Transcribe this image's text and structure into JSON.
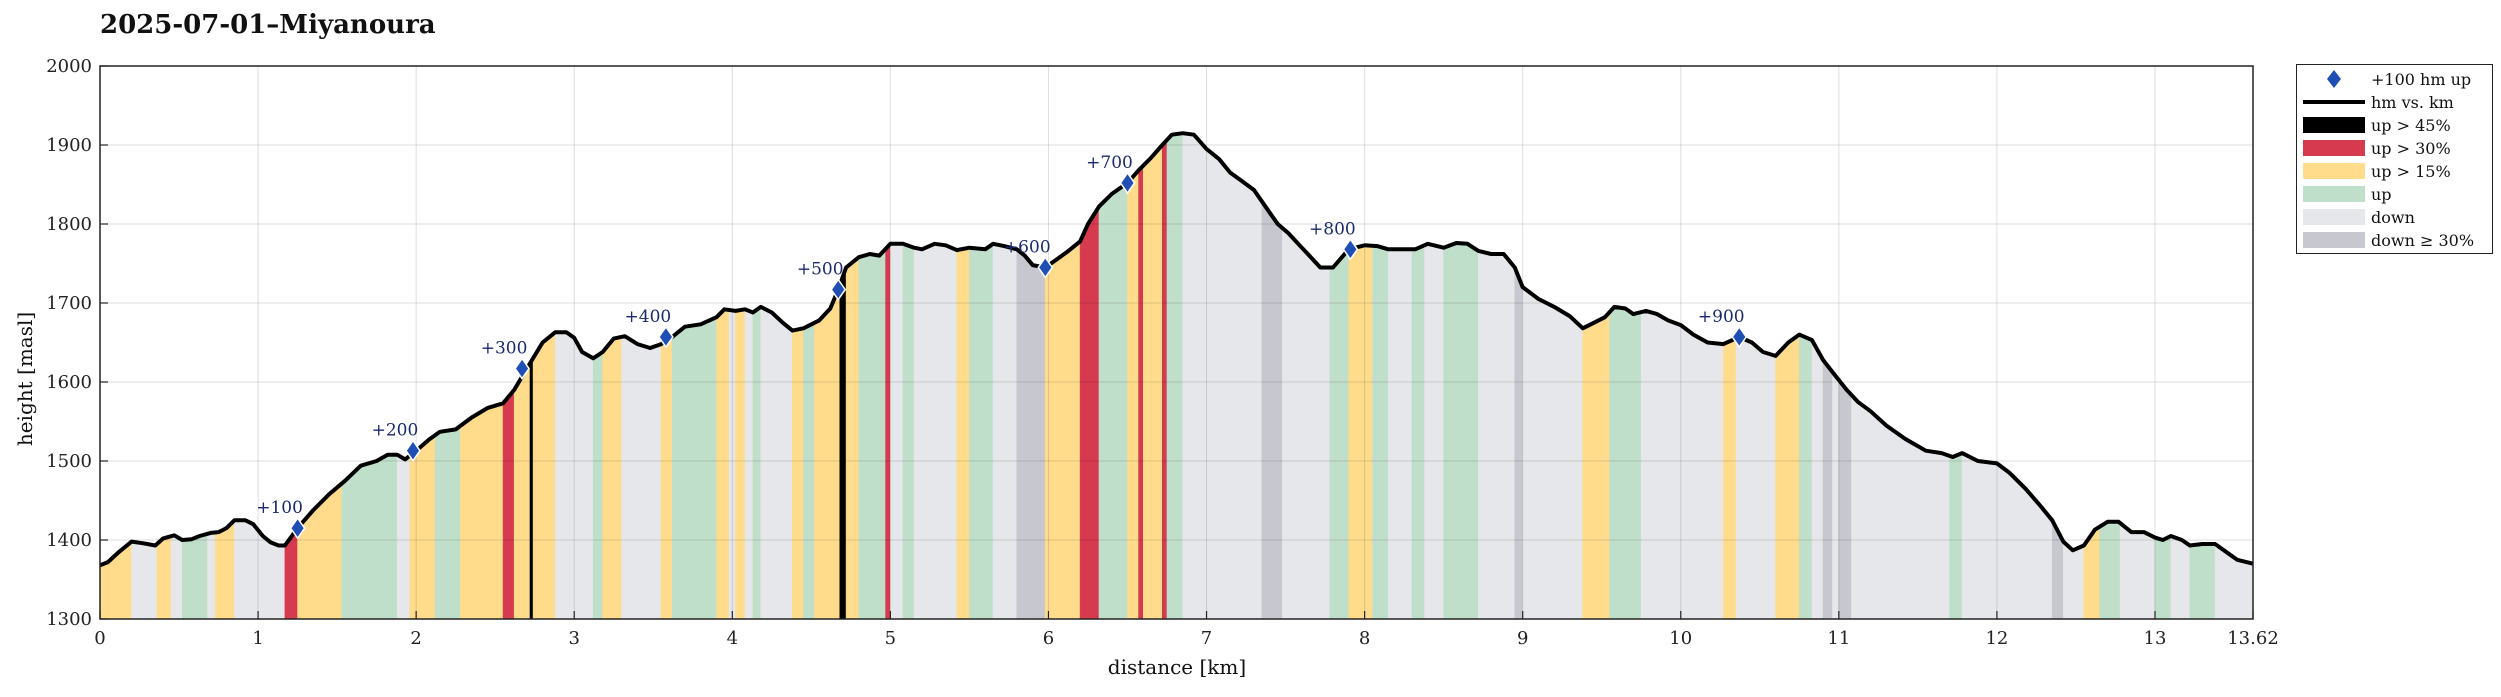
{
  "chart_data": {
    "type": "area",
    "title": "2025-07-01–Miyanoura",
    "xlabel": "distance [km]",
    "ylabel": "height [masl]",
    "xlim": [
      0,
      13.62
    ],
    "ylim": [
      1300,
      2000
    ],
    "xticks": [
      "0",
      "1",
      "2",
      "3",
      "4",
      "5",
      "6",
      "7",
      "8",
      "9",
      "10",
      "11",
      "12",
      "13",
      "13.62"
    ],
    "xtick_values": [
      0,
      1,
      2,
      3,
      4,
      5,
      6,
      7,
      8,
      9,
      10,
      11,
      12,
      13,
      13.62
    ],
    "yticks": [
      "1300",
      "1400",
      "1500",
      "1600",
      "1700",
      "1800",
      "1900",
      "2000"
    ],
    "ytick_values": [
      1300,
      1400,
      1500,
      1600,
      1700,
      1800,
      1900,
      2000
    ],
    "grid": true,
    "legend_position": "outside-top-right",
    "colors": {
      "up45": "#000000",
      "up30": "#d63a4e",
      "up15": "#fedc8c",
      "up": "#c0dfca",
      "down": "#e6e7ea",
      "down30": "#c7c8cf",
      "line": "#000000",
      "marker": "#1f4fb4"
    },
    "legend": [
      {
        "key": "marker",
        "label": "+100 hm up"
      },
      {
        "key": "line",
        "label": "hm vs. km"
      },
      {
        "key": "up45",
        "label": "up > 45%"
      },
      {
        "key": "up30",
        "label": "up > 30%"
      },
      {
        "key": "up15",
        "label": "up > 15%"
      },
      {
        "key": "up",
        "label": "up"
      },
      {
        "key": "down",
        "label": "down"
      },
      {
        "key": "down30",
        "label": "down ≥ 30%"
      }
    ],
    "profile": [
      [
        0,
        1368
      ],
      [
        0.05,
        1372
      ],
      [
        0.12,
        1385
      ],
      [
        0.2,
        1398
      ],
      [
        0.27,
        1396
      ],
      [
        0.35,
        1393
      ],
      [
        0.4,
        1402
      ],
      [
        0.47,
        1406
      ],
      [
        0.52,
        1400
      ],
      [
        0.58,
        1401
      ],
      [
        0.63,
        1405
      ],
      [
        0.7,
        1409
      ],
      [
        0.75,
        1410
      ],
      [
        0.8,
        1415
      ],
      [
        0.85,
        1425
      ],
      [
        0.92,
        1425
      ],
      [
        0.97,
        1420
      ],
      [
        1.03,
        1405
      ],
      [
        1.08,
        1397
      ],
      [
        1.13,
        1393
      ],
      [
        1.17,
        1393
      ],
      [
        1.25,
        1415
      ],
      [
        1.35,
        1438
      ],
      [
        1.45,
        1458
      ],
      [
        1.55,
        1475
      ],
      [
        1.65,
        1494
      ],
      [
        1.75,
        1500
      ],
      [
        1.82,
        1508
      ],
      [
        1.88,
        1508
      ],
      [
        1.93,
        1502
      ],
      [
        2.0,
        1513
      ],
      [
        2.08,
        1527
      ],
      [
        2.15,
        1537
      ],
      [
        2.25,
        1540
      ],
      [
        2.35,
        1555
      ],
      [
        2.45,
        1567
      ],
      [
        2.55,
        1573
      ],
      [
        2.62,
        1590
      ],
      [
        2.7,
        1617
      ],
      [
        2.8,
        1650
      ],
      [
        2.88,
        1663
      ],
      [
        2.95,
        1663
      ],
      [
        3.0,
        1656
      ],
      [
        3.05,
        1638
      ],
      [
        3.12,
        1630
      ],
      [
        3.18,
        1638
      ],
      [
        3.25,
        1655
      ],
      [
        3.32,
        1658
      ],
      [
        3.4,
        1648
      ],
      [
        3.48,
        1643
      ],
      [
        3.55,
        1648
      ],
      [
        3.62,
        1657
      ],
      [
        3.7,
        1670
      ],
      [
        3.8,
        1673
      ],
      [
        3.9,
        1682
      ],
      [
        3.95,
        1692
      ],
      [
        4.02,
        1690
      ],
      [
        4.08,
        1692
      ],
      [
        4.13,
        1688
      ],
      [
        4.18,
        1695
      ],
      [
        4.25,
        1688
      ],
      [
        4.32,
        1675
      ],
      [
        4.38,
        1665
      ],
      [
        4.45,
        1668
      ],
      [
        4.55,
        1678
      ],
      [
        4.62,
        1693
      ],
      [
        4.67,
        1717
      ],
      [
        4.72,
        1745
      ],
      [
        4.8,
        1758
      ],
      [
        4.87,
        1762
      ],
      [
        4.93,
        1760
      ],
      [
        5.0,
        1775
      ],
      [
        5.08,
        1775
      ],
      [
        5.15,
        1770
      ],
      [
        5.2,
        1768
      ],
      [
        5.28,
        1775
      ],
      [
        5.35,
        1773
      ],
      [
        5.42,
        1767
      ],
      [
        5.5,
        1770
      ],
      [
        5.6,
        1768
      ],
      [
        5.65,
        1775
      ],
      [
        5.72,
        1772
      ],
      [
        5.8,
        1768
      ],
      [
        5.85,
        1760
      ],
      [
        5.9,
        1748
      ],
      [
        5.98,
        1745
      ],
      [
        6.05,
        1755
      ],
      [
        6.12,
        1765
      ],
      [
        6.2,
        1778
      ],
      [
        6.25,
        1800
      ],
      [
        6.32,
        1822
      ],
      [
        6.4,
        1838
      ],
      [
        6.5,
        1852
      ],
      [
        6.57,
        1868
      ],
      [
        6.65,
        1884
      ],
      [
        6.72,
        1900
      ],
      [
        6.78,
        1913
      ],
      [
        6.85,
        1915
      ],
      [
        6.92,
        1913
      ],
      [
        7.0,
        1895
      ],
      [
        7.08,
        1882
      ],
      [
        7.15,
        1865
      ],
      [
        7.22,
        1855
      ],
      [
        7.3,
        1843
      ],
      [
        7.38,
        1820
      ],
      [
        7.45,
        1800
      ],
      [
        7.52,
        1788
      ],
      [
        7.58,
        1775
      ],
      [
        7.65,
        1760
      ],
      [
        7.72,
        1745
      ],
      [
        7.8,
        1745
      ],
      [
        7.9,
        1768
      ],
      [
        8.0,
        1773
      ],
      [
        8.08,
        1772
      ],
      [
        8.15,
        1768
      ],
      [
        8.25,
        1768
      ],
      [
        8.32,
        1768
      ],
      [
        8.4,
        1775
      ],
      [
        8.5,
        1770
      ],
      [
        8.58,
        1776
      ],
      [
        8.65,
        1775
      ],
      [
        8.72,
        1766
      ],
      [
        8.8,
        1762
      ],
      [
        8.88,
        1762
      ],
      [
        8.95,
        1745
      ],
      [
        9.0,
        1720
      ],
      [
        9.1,
        1705
      ],
      [
        9.2,
        1695
      ],
      [
        9.3,
        1683
      ],
      [
        9.38,
        1668
      ],
      [
        9.45,
        1675
      ],
      [
        9.52,
        1682
      ],
      [
        9.58,
        1695
      ],
      [
        9.65,
        1693
      ],
      [
        9.7,
        1686
      ],
      [
        9.78,
        1690
      ],
      [
        9.85,
        1686
      ],
      [
        9.92,
        1678
      ],
      [
        10.0,
        1672
      ],
      [
        10.08,
        1660
      ],
      [
        10.17,
        1650
      ],
      [
        10.27,
        1648
      ],
      [
        10.37,
        1657
      ],
      [
        10.45,
        1650
      ],
      [
        10.52,
        1638
      ],
      [
        10.6,
        1633
      ],
      [
        10.68,
        1650
      ],
      [
        10.75,
        1660
      ],
      [
        10.83,
        1653
      ],
      [
        10.9,
        1628
      ],
      [
        10.97,
        1610
      ],
      [
        11.05,
        1590
      ],
      [
        11.12,
        1575
      ],
      [
        11.2,
        1563
      ],
      [
        11.3,
        1545
      ],
      [
        11.42,
        1528
      ],
      [
        11.55,
        1513
      ],
      [
        11.65,
        1510
      ],
      [
        11.72,
        1505
      ],
      [
        11.78,
        1510
      ],
      [
        11.88,
        1500
      ],
      [
        12.0,
        1497
      ],
      [
        12.08,
        1485
      ],
      [
        12.18,
        1465
      ],
      [
        12.28,
        1442
      ],
      [
        12.35,
        1425
      ],
      [
        12.42,
        1398
      ],
      [
        12.48,
        1387
      ],
      [
        12.55,
        1393
      ],
      [
        12.62,
        1413
      ],
      [
        12.7,
        1423
      ],
      [
        12.77,
        1423
      ],
      [
        12.85,
        1410
      ],
      [
        12.93,
        1410
      ],
      [
        13.0,
        1403
      ],
      [
        13.05,
        1400
      ],
      [
        13.1,
        1405
      ],
      [
        13.17,
        1400
      ],
      [
        13.22,
        1393
      ],
      [
        13.3,
        1395
      ],
      [
        13.38,
        1395
      ],
      [
        13.45,
        1385
      ],
      [
        13.52,
        1375
      ],
      [
        13.62,
        1370
      ]
    ],
    "segments": [
      [
        0.0,
        0.2,
        "up15"
      ],
      [
        0.2,
        0.36,
        "down"
      ],
      [
        0.36,
        0.45,
        "up15"
      ],
      [
        0.45,
        0.52,
        "down"
      ],
      [
        0.52,
        0.68,
        "up"
      ],
      [
        0.68,
        0.73,
        "down"
      ],
      [
        0.73,
        0.85,
        "up15"
      ],
      [
        0.85,
        1.17,
        "down"
      ],
      [
        1.17,
        1.25,
        "up30"
      ],
      [
        1.25,
        1.53,
        "up15"
      ],
      [
        1.53,
        1.65,
        "up"
      ],
      [
        1.65,
        1.88,
        "up"
      ],
      [
        1.88,
        1.96,
        "down"
      ],
      [
        1.96,
        2.12,
        "up15"
      ],
      [
        2.12,
        2.28,
        "up"
      ],
      [
        2.28,
        2.55,
        "up15"
      ],
      [
        2.55,
        2.62,
        "up30"
      ],
      [
        2.62,
        2.72,
        "up15"
      ],
      [
        2.72,
        2.74,
        "up45"
      ],
      [
        2.74,
        2.88,
        "up15"
      ],
      [
        2.88,
        3.12,
        "down"
      ],
      [
        3.12,
        3.18,
        "up"
      ],
      [
        3.18,
        3.3,
        "up15"
      ],
      [
        3.3,
        3.55,
        "down"
      ],
      [
        3.55,
        3.62,
        "up15"
      ],
      [
        3.62,
        3.9,
        "up"
      ],
      [
        3.9,
        3.98,
        "up15"
      ],
      [
        3.98,
        4.02,
        "down"
      ],
      [
        4.02,
        4.08,
        "up15"
      ],
      [
        4.08,
        4.13,
        "down"
      ],
      [
        4.13,
        4.18,
        "up"
      ],
      [
        4.18,
        4.38,
        "down"
      ],
      [
        4.38,
        4.45,
        "up15"
      ],
      [
        4.45,
        4.52,
        "up"
      ],
      [
        4.52,
        4.68,
        "up15"
      ],
      [
        4.68,
        4.72,
        "up45"
      ],
      [
        4.72,
        4.8,
        "up15"
      ],
      [
        4.8,
        4.97,
        "up"
      ],
      [
        4.97,
        5.0,
        "up30"
      ],
      [
        5.0,
        5.08,
        "down"
      ],
      [
        5.08,
        5.15,
        "up"
      ],
      [
        5.15,
        5.42,
        "down"
      ],
      [
        5.42,
        5.5,
        "up15"
      ],
      [
        5.5,
        5.65,
        "up"
      ],
      [
        5.65,
        5.8,
        "down"
      ],
      [
        5.8,
        5.98,
        "down30"
      ],
      [
        5.98,
        6.2,
        "up15"
      ],
      [
        6.2,
        6.32,
        "up30"
      ],
      [
        6.32,
        6.5,
        "up"
      ],
      [
        6.5,
        6.57,
        "up15"
      ],
      [
        6.57,
        6.6,
        "up30"
      ],
      [
        6.6,
        6.72,
        "up15"
      ],
      [
        6.72,
        6.75,
        "up30"
      ],
      [
        6.75,
        6.85,
        "up"
      ],
      [
        6.85,
        7.35,
        "down"
      ],
      [
        7.35,
        7.48,
        "down30"
      ],
      [
        7.48,
        7.78,
        "down"
      ],
      [
        7.78,
        7.9,
        "up"
      ],
      [
        7.9,
        8.05,
        "up15"
      ],
      [
        8.05,
        8.15,
        "up"
      ],
      [
        8.15,
        8.3,
        "down"
      ],
      [
        8.3,
        8.38,
        "up"
      ],
      [
        8.38,
        8.5,
        "down"
      ],
      [
        8.5,
        8.6,
        "up"
      ],
      [
        8.6,
        8.72,
        "up"
      ],
      [
        8.72,
        8.8,
        "down"
      ],
      [
        8.8,
        8.95,
        "down"
      ],
      [
        8.95,
        9.0,
        "down30"
      ],
      [
        9.0,
        9.38,
        "down"
      ],
      [
        9.38,
        9.55,
        "up15"
      ],
      [
        9.55,
        9.65,
        "up"
      ],
      [
        9.65,
        9.75,
        "up"
      ],
      [
        9.75,
        10.27,
        "down"
      ],
      [
        10.27,
        10.35,
        "up15"
      ],
      [
        10.35,
        10.6,
        "down"
      ],
      [
        10.6,
        10.75,
        "up15"
      ],
      [
        10.75,
        10.83,
        "up"
      ],
      [
        10.83,
        10.9,
        "down"
      ],
      [
        10.9,
        10.96,
        "down30"
      ],
      [
        10.96,
        11.0,
        "down"
      ],
      [
        11.0,
        11.08,
        "down30"
      ],
      [
        11.08,
        11.7,
        "down"
      ],
      [
        11.7,
        11.78,
        "up"
      ],
      [
        11.78,
        12.35,
        "down"
      ],
      [
        12.35,
        12.42,
        "down30"
      ],
      [
        12.42,
        12.55,
        "down"
      ],
      [
        12.55,
        12.65,
        "up15"
      ],
      [
        12.65,
        12.78,
        "up"
      ],
      [
        12.78,
        13.0,
        "down"
      ],
      [
        13.0,
        13.1,
        "up"
      ],
      [
        13.1,
        13.22,
        "down"
      ],
      [
        13.22,
        13.38,
        "up"
      ],
      [
        13.38,
        13.62,
        "down"
      ]
    ],
    "markers": [
      {
        "x": 1.25,
        "y": 1415,
        "label": "+100"
      },
      {
        "x": 1.98,
        "y": 1513,
        "label": "+200"
      },
      {
        "x": 2.67,
        "y": 1617,
        "label": "+300"
      },
      {
        "x": 3.58,
        "y": 1657,
        "label": "+400"
      },
      {
        "x": 4.67,
        "y": 1717,
        "label": "+500"
      },
      {
        "x": 5.98,
        "y": 1745,
        "label": "+600"
      },
      {
        "x": 6.5,
        "y": 1852,
        "label": "+700"
      },
      {
        "x": 7.91,
        "y": 1768,
        "label": "+800"
      },
      {
        "x": 10.37,
        "y": 1657,
        "label": "+900"
      }
    ]
  }
}
